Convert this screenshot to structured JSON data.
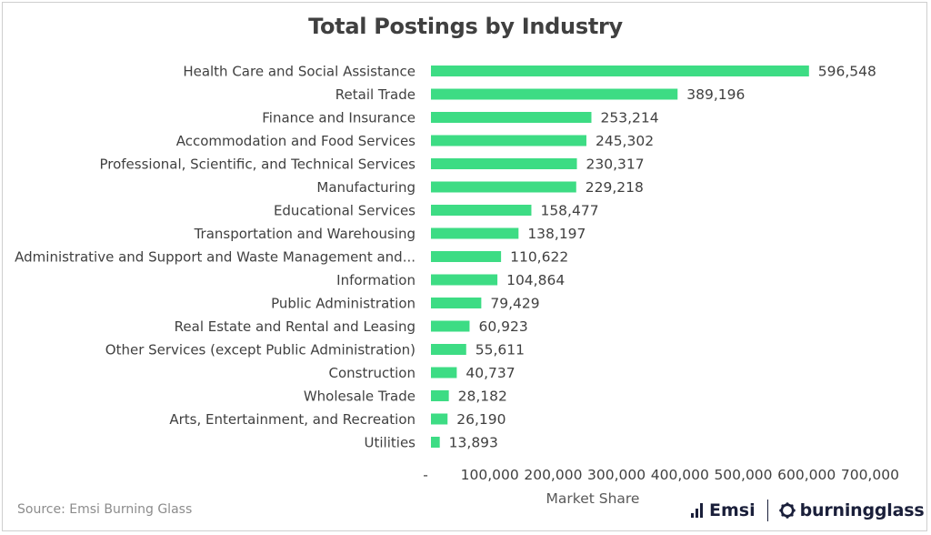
{
  "chart_data": {
    "type": "bar",
    "orientation": "horizontal",
    "title": "Total Postings by Industry",
    "xlabel": "Market Share",
    "ylabel": "",
    "xlim": [
      0,
      700000
    ],
    "grid": false,
    "legend": "none",
    "bar_color": "#3ddc84",
    "categories": [
      "Health Care and Social Assistance",
      "Retail Trade",
      "Finance and Insurance",
      "Accommodation and Food Services",
      "Professional, Scientific, and Technical Services",
      "Manufacturing",
      "Educational Services",
      "Transportation and Warehousing",
      "Administrative and Support and Waste Management and...",
      "Information",
      "Public Administration",
      "Real Estate and Rental and Leasing",
      "Other Services (except Public Administration)",
      "Construction",
      "Wholesale Trade",
      "Arts, Entertainment, and Recreation",
      "Utilities"
    ],
    "values": [
      596548,
      389196,
      253214,
      245302,
      230317,
      229218,
      158477,
      138197,
      110622,
      104864,
      79429,
      60923,
      55611,
      40737,
      28182,
      26190,
      13893
    ],
    "value_labels": [
      "596,548",
      "389,196",
      "253,214",
      "245,302",
      "230,317",
      "229,218",
      "158,477",
      "138,197",
      "110,622",
      "104,864",
      "79,429",
      "60,923",
      "55,611",
      "40,737",
      "28,182",
      "26,190",
      "13,893"
    ],
    "ticks": [
      0,
      100000,
      200000,
      300000,
      400000,
      500000,
      600000,
      700000
    ],
    "tick_labels": [
      "-",
      "100,000",
      "200,000",
      "300,000",
      "400,000",
      "500,000",
      "600,000",
      "700,000"
    ]
  },
  "footer": {
    "source": "Source:  Emsi Burning Glass",
    "logo_emsi": "Emsi",
    "logo_burningglass": "burningglass"
  }
}
